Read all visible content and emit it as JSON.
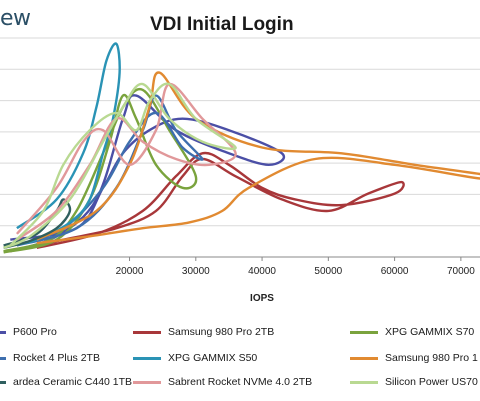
{
  "logo": {
    "text": "ew"
  },
  "chart_data": {
    "type": "line",
    "title": "VDI Initial Login",
    "xlabel": "IOPS",
    "ylabel": "",
    "xlim": [
      0,
      75000
    ],
    "ylim": [
      0,
      19
    ],
    "x_ticks": [
      20000,
      30000,
      40000,
      50000,
      60000,
      70000
    ],
    "x_tick_labels": [
      "20000",
      "30000",
      "40000",
      "50000",
      "60000",
      "70000"
    ],
    "grid": "horizontal",
    "legend_position": "bottom",
    "series": [
      {
        "name": "P600 Pro",
        "color": "#4b4fa6",
        "points": [
          [
            2000,
            1.5
          ],
          [
            12000,
            2.5
          ],
          [
            16000,
            6
          ],
          [
            19000,
            9
          ],
          [
            23000,
            11
          ],
          [
            28000,
            12
          ],
          [
            35000,
            11
          ],
          [
            43000,
            9
          ],
          [
            41000,
            8
          ],
          [
            35000,
            9
          ],
          [
            27000,
            11
          ],
          [
            21000,
            14
          ],
          [
            19000,
            12
          ],
          [
            15000,
            5
          ],
          [
            9000,
            1.8
          ],
          [
            2000,
            0.5
          ]
        ]
      },
      {
        "name": "Samsung 980 Pro 2TB",
        "color": "#a8373a",
        "points": [
          [
            2000,
            0.5
          ],
          [
            10000,
            1.5
          ],
          [
            18000,
            2.5
          ],
          [
            24000,
            4
          ],
          [
            28000,
            7
          ],
          [
            31000,
            8.5
          ],
          [
            36000,
            7
          ],
          [
            43000,
            5
          ],
          [
            50000,
            4
          ],
          [
            56000,
            5.5
          ],
          [
            61000,
            6.5
          ],
          [
            60000,
            5.5
          ],
          [
            52000,
            4.5
          ],
          [
            45000,
            5
          ],
          [
            40000,
            6
          ],
          [
            35000,
            8
          ],
          [
            31000,
            9
          ],
          [
            27000,
            7
          ],
          [
            22000,
            4
          ],
          [
            15000,
            2
          ],
          [
            6000,
            0.8
          ]
        ]
      },
      {
        "name": "XPG GAMMIX S70",
        "color": "#7aa33d",
        "points": [
          [
            1000,
            0.5
          ],
          [
            8000,
            1.5
          ],
          [
            12000,
            4
          ],
          [
            16000,
            9
          ],
          [
            19000,
            13
          ],
          [
            22000,
            14.5
          ],
          [
            26000,
            11
          ],
          [
            30000,
            7
          ],
          [
            28000,
            6
          ],
          [
            24000,
            8
          ],
          [
            21000,
            12
          ],
          [
            19000,
            14
          ],
          [
            17000,
            10
          ],
          [
            14000,
            5
          ],
          [
            9000,
            1.5
          ],
          [
            1000,
            0.4
          ]
        ]
      },
      {
        "name": "Rocket 4 Plus 2TB",
        "color": "#3e6fae",
        "points": [
          [
            3000,
            1
          ],
          [
            12000,
            2.5
          ],
          [
            18000,
            6
          ],
          [
            22000,
            11
          ],
          [
            24000,
            14
          ],
          [
            27000,
            11
          ],
          [
            31000,
            8.5
          ],
          [
            28000,
            9.5
          ],
          [
            24000,
            12.5
          ],
          [
            20000,
            10
          ],
          [
            16000,
            6
          ],
          [
            10000,
            2.5
          ],
          [
            3000,
            1
          ]
        ]
      },
      {
        "name": "XPG GAMMIX S50",
        "color": "#2a93b5",
        "points": [
          [
            3000,
            2.5
          ],
          [
            9000,
            5
          ],
          [
            13000,
            9
          ],
          [
            15000,
            13
          ],
          [
            16500,
            17
          ],
          [
            18000,
            18.5
          ],
          [
            18500,
            16
          ],
          [
            17500,
            12
          ],
          [
            16000,
            9
          ],
          [
            14000,
            5
          ],
          [
            11000,
            3
          ],
          [
            6000,
            1.5
          ],
          [
            2000,
            1
          ]
        ]
      },
      {
        "name": "Samsung 980 Pro 1",
        "color": "#e18a31",
        "points": [
          [
            6000,
            1.5
          ],
          [
            15000,
            4
          ],
          [
            20000,
            8
          ],
          [
            23000,
            13
          ],
          [
            24500,
            16
          ],
          [
            30000,
            12
          ],
          [
            40000,
            9.5
          ],
          [
            52000,
            9
          ],
          [
            63000,
            8
          ],
          [
            75000,
            7
          ],
          [
            73000,
            6.8
          ],
          [
            60000,
            8
          ],
          [
            48000,
            8.5
          ],
          [
            38000,
            6
          ],
          [
            34000,
            4
          ],
          [
            29000,
            3
          ],
          [
            22000,
            2.5
          ],
          [
            14000,
            1.8
          ],
          [
            6000,
            1.2
          ]
        ]
      },
      {
        "name": "ardea Ceramic C440 1TB",
        "color": "#2f5f5f",
        "points": [
          [
            1000,
            1
          ],
          [
            6000,
            2
          ],
          [
            9000,
            4
          ],
          [
            10000,
            5
          ],
          [
            11000,
            4
          ],
          [
            9000,
            2.5
          ],
          [
            5000,
            1.4
          ],
          [
            1000,
            0.8
          ]
        ]
      },
      {
        "name": "Sabrent Rocket NVMe 4.0 2TB",
        "color": "#e1989a",
        "points": [
          [
            3000,
            2
          ],
          [
            9000,
            6
          ],
          [
            13000,
            10
          ],
          [
            16000,
            11
          ],
          [
            20000,
            8
          ],
          [
            24000,
            11
          ],
          [
            26000,
            15
          ],
          [
            31000,
            12
          ],
          [
            36000,
            9
          ],
          [
            32000,
            8
          ],
          [
            27000,
            8.5
          ],
          [
            22000,
            10
          ],
          [
            18000,
            12
          ],
          [
            14000,
            8
          ],
          [
            9000,
            4
          ],
          [
            3000,
            1.5
          ]
        ]
      },
      {
        "name": "Silicon Power US70",
        "color": "#b9d992",
        "points": [
          [
            2000,
            1
          ],
          [
            7000,
            4
          ],
          [
            10000,
            8
          ],
          [
            14000,
            11
          ],
          [
            18000,
            12.5
          ],
          [
            21000,
            11
          ],
          [
            23000,
            13.5
          ],
          [
            26000,
            15
          ],
          [
            30000,
            12
          ],
          [
            36000,
            9.5
          ],
          [
            31000,
            10
          ],
          [
            26000,
            12
          ],
          [
            22000,
            15
          ],
          [
            19000,
            13
          ],
          [
            16000,
            10
          ],
          [
            11000,
            5
          ],
          [
            5000,
            1.8
          ],
          [
            1000,
            0.8
          ]
        ]
      }
    ]
  }
}
